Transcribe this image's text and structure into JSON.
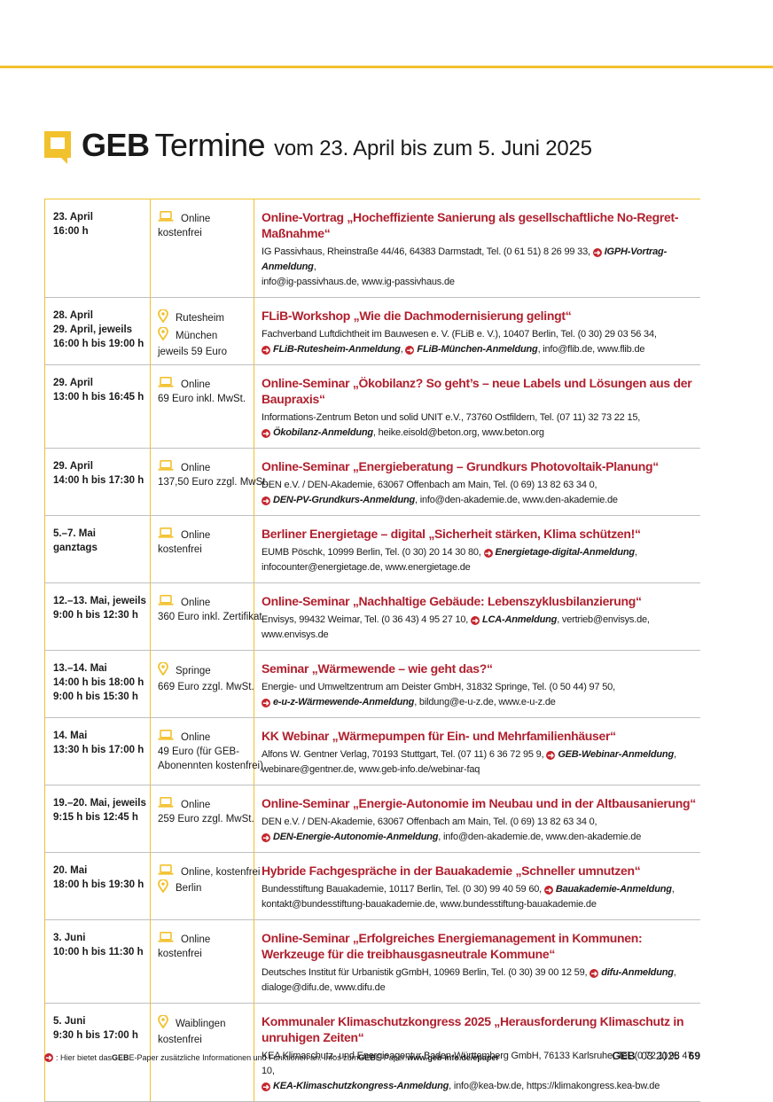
{
  "header": {
    "brand": "GEB",
    "title": "Termine",
    "subtitle": "vom 23. April bis zum 5. Juni 2025"
  },
  "events": [
    {
      "date_lines": [
        "23. April",
        "16:00 h"
      ],
      "format_lines": [
        {
          "icon": "laptop-icon",
          "text": "Online"
        },
        {
          "icon": "",
          "text": "kostenfrei"
        }
      ],
      "title": "Online-Vortrag „Hocheffiziente Sanierung als gesellschaftliche No-Regret-Maßnahme“",
      "details": [
        [
          {
            "k": "text",
            "v": "IG Passivhaus, Rheinstraße 44/46, 64383 Darmstadt, Tel. (0 61 51) 8 26 99 33, "
          },
          {
            "k": "link",
            "v": "IGPH-Vortrag-Anmeldung"
          },
          {
            "k": "text",
            "v": ","
          }
        ],
        [
          {
            "k": "text",
            "v": "info@ig-passivhaus.de, www.ig-passivhaus.de"
          }
        ]
      ]
    },
    {
      "date_lines": [
        "28. April",
        "29. April, jeweils",
        "16:00 h bis 19:00 h"
      ],
      "format_lines": [
        {
          "icon": "location-pin-icon",
          "text": "Rutesheim"
        },
        {
          "icon": "location-pin-icon",
          "text": "München"
        },
        {
          "icon": "",
          "text": "jeweils 59 Euro"
        }
      ],
      "title": "FLiB-Workshop „Wie die Dachmodernisierung gelingt“",
      "details": [
        [
          {
            "k": "text",
            "v": "Fachverband Luftdichtheit im Bauwesen e. V. (FLiB e. V.), 10407 Berlin, Tel. (0 30) 29 03 56 34,"
          }
        ],
        [
          {
            "k": "link",
            "v": "FLiB-Rutesheim-Anmeldung"
          },
          {
            "k": "text",
            "v": ", "
          },
          {
            "k": "link",
            "v": "FLiB-München-Anmeldung"
          },
          {
            "k": "text",
            "v": ", info@flib.de, www.flib.de"
          }
        ]
      ]
    },
    {
      "date_lines": [
        "29. April",
        "13:00 h bis 16:45 h"
      ],
      "format_lines": [
        {
          "icon": "laptop-icon",
          "text": "Online"
        },
        {
          "icon": "",
          "text": "69 Euro inkl. MwSt."
        }
      ],
      "title": "Online-Seminar „Ökobilanz? So geht’s – neue Labels und Lösungen aus der Baupraxis“",
      "details": [
        [
          {
            "k": "text",
            "v": "Informations-Zentrum Beton und solid UNIT e.V., 73760 Ostfildern, Tel. (07 11) 32 73 22 15,"
          }
        ],
        [
          {
            "k": "link",
            "v": "Ökobilanz-Anmeldung"
          },
          {
            "k": "text",
            "v": ", heike.eisold@beton.org, www.beton.org"
          }
        ]
      ]
    },
    {
      "date_lines": [
        "29. April",
        "14:00 h bis 17:30 h"
      ],
      "format_lines": [
        {
          "icon": "laptop-icon",
          "text": "Online"
        },
        {
          "icon": "",
          "text": "137,50 Euro zzgl. MwSt."
        }
      ],
      "title": "Online-Seminar „Energieberatung – Grundkurs Photovoltaik-Planung“",
      "details": [
        [
          {
            "k": "text",
            "v": "DEN e.V. / DEN-Akademie, 63067 Offenbach am Main, Tel. (0 69) 13 82 63 34 0,"
          }
        ],
        [
          {
            "k": "link",
            "v": "DEN-PV-Grundkurs-Anmeldung"
          },
          {
            "k": "text",
            "v": ", info@den-akademie.de, www.den-akademie.de"
          }
        ]
      ]
    },
    {
      "date_lines": [
        "5.–7. Mai",
        "ganztags"
      ],
      "format_lines": [
        {
          "icon": "laptop-icon",
          "text": "Online"
        },
        {
          "icon": "",
          "text": "kostenfrei"
        }
      ],
      "title": "Berliner Energietage – digital „Sicherheit stärken, Klima schützen!“",
      "details": [
        [
          {
            "k": "text",
            "v": "EUMB Pöschk, 10999 Berlin, Tel. (0 30) 20 14 30 80, "
          },
          {
            "k": "link",
            "v": "Energietage-digital-Anmeldung"
          },
          {
            "k": "text",
            "v": ","
          }
        ],
        [
          {
            "k": "text",
            "v": "infocounter@energietage.de, www.energietage.de"
          }
        ]
      ]
    },
    {
      "date_lines": [
        "12.–13. Mai, jeweils",
        "9:00 h bis 12:30 h"
      ],
      "format_lines": [
        {
          "icon": "laptop-icon",
          "text": "Online"
        },
        {
          "icon": "",
          "text": "360 Euro inkl. Zertifikat"
        }
      ],
      "title": "Online-Seminar „Nachhaltige Gebäude: Lebenszyklusbilanzierung“",
      "details": [
        [
          {
            "k": "text",
            "v": "Envisys, 99432 Weimar, Tel. (0 36 43) 4 95 27 10, "
          },
          {
            "k": "link",
            "v": "LCA-Anmeldung"
          },
          {
            "k": "text",
            "v": ", vertrieb@envisys.de, www.envisys.de"
          }
        ]
      ]
    },
    {
      "date_lines": [
        "13.–14. Mai",
        "14:00 h bis 18:00 h",
        "9:00 h bis 15:30 h"
      ],
      "format_lines": [
        {
          "icon": "location-pin-icon",
          "text": "Springe"
        },
        {
          "icon": "",
          "text": "669 Euro zzgl. MwSt."
        }
      ],
      "title": "Seminar „Wärmewende – wie geht das?“",
      "details": [
        [
          {
            "k": "text",
            "v": "Energie- und Umweltzentrum am Deister GmbH, 31832 Springe, Tel. (0 50 44) 97 50,"
          }
        ],
        [
          {
            "k": "link",
            "v": "e-u-z-Wärmewende-Anmeldung"
          },
          {
            "k": "text",
            "v": ", bildung@e-u-z.de, www.e-u-z.de"
          }
        ]
      ]
    },
    {
      "date_lines": [
        "14. Mai",
        "13:30 h bis 17:00 h"
      ],
      "format_lines": [
        {
          "icon": "laptop-icon",
          "text": "Online"
        },
        {
          "icon": "",
          "text": "49 Euro (für GEB-"
        },
        {
          "icon": "",
          "text": "Abonennten kostenfrei)"
        }
      ],
      "title": "KK Webinar „Wärmepumpen für Ein- und Mehrfamilienhäuser“",
      "details": [
        [
          {
            "k": "text",
            "v": "Alfons W. Gentner Verlag, 70193 Stuttgart, Tel. (07 11) 6 36 72 95 9, "
          },
          {
            "k": "link",
            "v": "GEB-Webinar-Anmeldung"
          },
          {
            "k": "text",
            "v": ","
          }
        ],
        [
          {
            "k": "text",
            "v": "webinare@gentner.de, www.geb-info.de/webinar-faq"
          }
        ]
      ]
    },
    {
      "date_lines": [
        "19.–20. Mai, jeweils",
        "9:15 h bis 12:45 h"
      ],
      "format_lines": [
        {
          "icon": "laptop-icon",
          "text": "Online"
        },
        {
          "icon": "",
          "text": "259 Euro zzgl. MwSt."
        }
      ],
      "title": "Online-Seminar „Energie-Autonomie im Neubau und in der Altbausanierung“",
      "details": [
        [
          {
            "k": "text",
            "v": "DEN e.V. / DEN-Akademie, 63067 Offenbach am Main, Tel. (0 69) 13 82 63 34 0,"
          }
        ],
        [
          {
            "k": "link",
            "v": "DEN-Energie-Autonomie-Anmeldung"
          },
          {
            "k": "text",
            "v": ", info@den-akademie.de, www.den-akademie.de"
          }
        ]
      ]
    },
    {
      "date_lines": [
        "20. Mai",
        "18:00 h bis 19:30 h"
      ],
      "format_lines": [
        {
          "icon": "laptop-icon",
          "text": "Online, kostenfrei"
        },
        {
          "icon": "location-pin-icon",
          "text": "Berlin"
        }
      ],
      "title": "Hybride Fachgespräche in der Bauakademie „Schneller umnutzen“",
      "details": [
        [
          {
            "k": "text",
            "v": "Bundesstiftung Bauakademie, 10117 Berlin, Tel. (0 30) 99 40 59 60, "
          },
          {
            "k": "link",
            "v": "Bauakademie-Anmeldung"
          },
          {
            "k": "text",
            "v": ","
          }
        ],
        [
          {
            "k": "text",
            "v": "kontakt@bundesstiftung-bauakademie.de, www.bundesstiftung-bauakademie.de"
          }
        ]
      ]
    },
    {
      "date_lines": [
        "3. Juni",
        "10:00 h bis 11:30 h"
      ],
      "format_lines": [
        {
          "icon": "laptop-icon",
          "text": "Online"
        },
        {
          "icon": "",
          "text": "kostenfrei"
        }
      ],
      "title": "Online-Seminar „Erfolgreiches Energiemanagement in Kommunen: Werkzeuge für die treibhausgasneutrale Kommune“",
      "details": [
        [
          {
            "k": "text",
            "v": "Deutsches Institut für Urbanistik gGmbH, 10969 Berlin, Tel. (0 30) 39 00 12 59, "
          },
          {
            "k": "link",
            "v": "difu-Anmeldung"
          },
          {
            "k": "text",
            "v": ","
          }
        ],
        [
          {
            "k": "text",
            "v": "dialoge@difu.de, www.difu.de"
          }
        ]
      ]
    },
    {
      "date_lines": [
        "5. Juni",
        "9:30 h bis 17:00 h"
      ],
      "format_lines": [
        {
          "icon": "location-pin-icon",
          "text": "Waiblingen"
        },
        {
          "icon": "",
          "text": "kostenfrei"
        }
      ],
      "title": "Kommunaler Klimaschutzkongress 2025 „Herausforderung Klimaschutz in unruhigen Zeiten“",
      "details": [
        [
          {
            "k": "text",
            "v": "KEA Klimaschutz- und Energieagentur Baden-Württemberg GmbH, 76133 Karlsruhe, Tel. (0 72 1) 98 47 10,"
          }
        ],
        [
          {
            "k": "link",
            "v": "KEA-Klimaschutzkongress-Anmeldung"
          },
          {
            "k": "text",
            "v": ", info@kea-bw.de, https://klimakongress.kea-bw.de"
          }
        ]
      ]
    }
  ],
  "footer": {
    "note_prefix": ": Hier bietet das ",
    "note_brand_1": "GEB",
    "note_mid": " E-Paper zusätzliche Informationen und Funktionen an. Infos zum ",
    "note_brand_2": "GEB",
    "note_mid2": " E-Paper: ",
    "note_url": "www.geb-info.de/epaper",
    "issue_brand": "GEB",
    "issue": "03 2025",
    "page_number": "69"
  },
  "colors": {
    "accent_yellow": "#f2c12e",
    "title_red": "#b0202e",
    "link_arrow_red": "#c4262e"
  }
}
